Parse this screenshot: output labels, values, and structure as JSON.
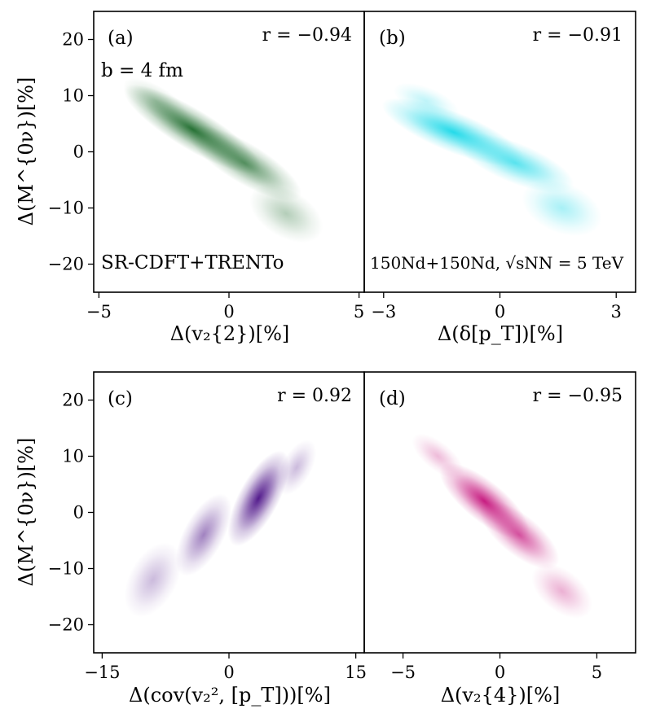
{
  "chart_data": {
    "type": "heatmap",
    "ylabel": "Δ(M^{0ν})[%]",
    "ylim": [
      -25,
      25
    ],
    "yticks": [
      20,
      10,
      0,
      -10,
      -20
    ],
    "ytick_labels": [
      "20",
      "10",
      "0",
      "−10",
      "−20"
    ],
    "panels": [
      {
        "id": "a",
        "label": "(a)",
        "corr_text": "r = −0.94",
        "r": -0.94,
        "xlabel": "Δ(v₂{2})[%]",
        "xlim": [
          -5.2,
          5.2
        ],
        "xticks": [
          -5,
          0,
          5
        ],
        "xtick_labels": [
          "−5",
          "0",
          "5"
        ],
        "color": "#1b6a2a",
        "annotations": [
          "b = 4 fm",
          "SR-CDFT+TRENTo"
        ],
        "density": [
          {
            "x": -1.4,
            "y": 4.0,
            "sx": 1.7,
            "sy": 3.0,
            "w": 1.0
          },
          {
            "x": 0.6,
            "y": -2.0,
            "sx": 1.4,
            "sy": 3.0,
            "w": 0.75
          },
          {
            "x": 2.2,
            "y": -11.0,
            "sx": 0.8,
            "sy": 4.0,
            "w": 0.35
          },
          {
            "x": -2.8,
            "y": 9.0,
            "sx": 0.8,
            "sy": 2.0,
            "w": 0.3
          }
        ]
      },
      {
        "id": "b",
        "label": "(b)",
        "corr_text": "r = −0.91",
        "r": -0.91,
        "xlabel": "Δ(δ[p_T])[%]",
        "xlim": [
          -3.5,
          3.5
        ],
        "xticks": [
          -3,
          0,
          3
        ],
        "xtick_labels": [
          "−3",
          "0",
          "3"
        ],
        "color": "#18d8e8",
        "annotations": [
          "150Nd+150Nd, √sNN = 5 TeV"
        ],
        "density": [
          {
            "x": -1.2,
            "y": 3.5,
            "sx": 1.1,
            "sy": 3.0,
            "w": 1.0
          },
          {
            "x": 0.4,
            "y": -2.0,
            "sx": 0.9,
            "sy": 3.0,
            "w": 0.75
          },
          {
            "x": 1.6,
            "y": -10.0,
            "sx": 0.6,
            "sy": 4.0,
            "w": 0.4
          },
          {
            "x": -1.9,
            "y": 9.0,
            "sx": 0.5,
            "sy": 1.8,
            "w": 0.3
          }
        ]
      },
      {
        "id": "c",
        "label": "(c)",
        "corr_text": "r = 0.92",
        "r": 0.92,
        "xlabel": "Δ(cov(v₂², [p_T]))[%]",
        "xlim": [
          -16,
          16
        ],
        "xticks": [
          -15,
          0,
          15
        ],
        "xtick_labels": [
          "−15",
          "0",
          "15"
        ],
        "color": "#4a0f86",
        "annotations": [],
        "density": [
          {
            "x": 3.5,
            "y": 2.5,
            "sx": 3.5,
            "sy": 3.0,
            "w": 1.0
          },
          {
            "x": -3.0,
            "y": -4.0,
            "sx": 3.0,
            "sy": 3.0,
            "w": 0.55
          },
          {
            "x": -9.0,
            "y": -12.0,
            "sx": 2.5,
            "sy": 4.0,
            "w": 0.3
          },
          {
            "x": 8.0,
            "y": 8.0,
            "sx": 2.0,
            "sy": 2.0,
            "w": 0.3
          }
        ]
      },
      {
        "id": "d",
        "label": "(d)",
        "corr_text": "r = −0.95",
        "r": -0.95,
        "xlabel": "Δ(v₂{4})[%]",
        "xlim": [
          -7,
          7
        ],
        "xticks": [
          -5,
          0,
          5
        ],
        "xtick_labels": [
          "−5",
          "0",
          "5"
        ],
        "color": "#c4107a",
        "annotations": [],
        "density": [
          {
            "x": -0.8,
            "y": 2.0,
            "sx": 1.6,
            "sy": 3.0,
            "w": 1.0
          },
          {
            "x": 1.0,
            "y": -4.0,
            "sx": 1.4,
            "sy": 3.0,
            "w": 0.75
          },
          {
            "x": 3.2,
            "y": -14.0,
            "sx": 0.9,
            "sy": 3.5,
            "w": 0.35
          },
          {
            "x": -3.2,
            "y": 10.0,
            "sx": 0.9,
            "sy": 1.8,
            "w": 0.3
          }
        ]
      }
    ]
  }
}
